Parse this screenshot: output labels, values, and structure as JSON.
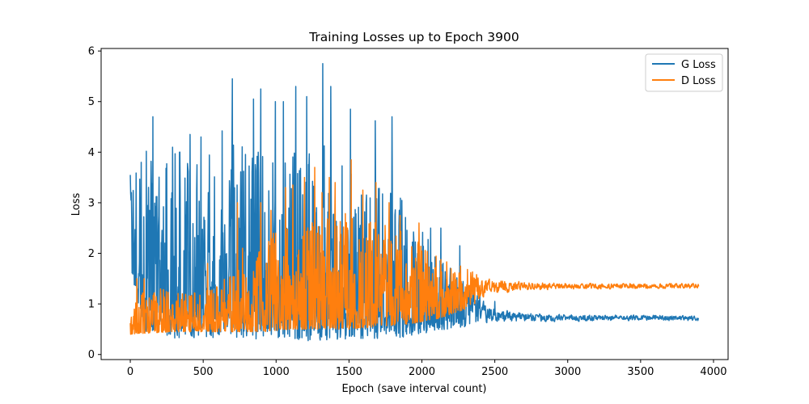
{
  "chart_data": {
    "type": "line",
    "title": "Training Losses up to Epoch 3900",
    "xlabel": "Epoch (save interval count)",
    "ylabel": "Loss",
    "xlim": [
      -200,
      4100
    ],
    "ylim": [
      -0.1,
      6.05
    ],
    "xticks": [
      0,
      500,
      1000,
      1500,
      2000,
      2500,
      3000,
      3500,
      4000
    ],
    "yticks": [
      0,
      1,
      2,
      3,
      4,
      5,
      6
    ],
    "xtick_labels": [
      "0",
      "500",
      "1000",
      "1500",
      "2000",
      "2500",
      "3000",
      "3500",
      "4000"
    ],
    "ytick_labels": [
      "0",
      "1",
      "2",
      "3",
      "4",
      "5",
      "6"
    ],
    "grid": false,
    "legend_position": "top-right",
    "series": [
      {
        "name": "G Loss",
        "color": "#1f77b4",
        "x_max": 3900,
        "profile": [
          {
            "x": 0,
            "low": 1.6,
            "high": 3.5
          },
          {
            "x": 100,
            "low": 0.4,
            "high": 3.8
          },
          {
            "x": 300,
            "low": 0.3,
            "high": 4.0
          },
          {
            "x": 500,
            "low": 0.3,
            "high": 4.2
          },
          {
            "x": 700,
            "low": 0.3,
            "high": 4.3
          },
          {
            "x": 900,
            "low": 0.3,
            "high": 4.0
          },
          {
            "x": 1100,
            "low": 0.3,
            "high": 4.0
          },
          {
            "x": 1300,
            "low": 0.25,
            "high": 4.2
          },
          {
            "x": 1500,
            "low": 0.3,
            "high": 3.8
          },
          {
            "x": 1700,
            "low": 0.3,
            "high": 3.5
          },
          {
            "x": 1900,
            "low": 0.35,
            "high": 3.0
          },
          {
            "x": 2100,
            "low": 0.45,
            "high": 2.0
          },
          {
            "x": 2300,
            "low": 0.55,
            "high": 1.4
          },
          {
            "x": 2500,
            "low": 0.6,
            "high": 0.95
          },
          {
            "x": 2700,
            "low": 0.62,
            "high": 0.85
          },
          {
            "x": 3000,
            "low": 0.65,
            "high": 0.8
          },
          {
            "x": 3900,
            "low": 0.66,
            "high": 0.78
          }
        ],
        "peaks": [
          {
            "x": 0,
            "y": 3.55
          },
          {
            "x": 75,
            "y": 3.8
          },
          {
            "x": 110,
            "y": 4.02
          },
          {
            "x": 155,
            "y": 4.7
          },
          {
            "x": 290,
            "y": 4.1
          },
          {
            "x": 410,
            "y": 4.35
          },
          {
            "x": 485,
            "y": 4.3
          },
          {
            "x": 630,
            "y": 4.42
          },
          {
            "x": 700,
            "y": 5.45
          },
          {
            "x": 845,
            "y": 5.05
          },
          {
            "x": 895,
            "y": 5.25
          },
          {
            "x": 995,
            "y": 5.0
          },
          {
            "x": 1050,
            "y": 5.0
          },
          {
            "x": 1135,
            "y": 5.3
          },
          {
            "x": 1210,
            "y": 5.1
          },
          {
            "x": 1320,
            "y": 5.75
          },
          {
            "x": 1375,
            "y": 5.3
          },
          {
            "x": 1510,
            "y": 4.85
          },
          {
            "x": 1680,
            "y": 4.62
          },
          {
            "x": 1795,
            "y": 4.7
          },
          {
            "x": 2060,
            "y": 2.5
          },
          {
            "x": 2130,
            "y": 2.5
          },
          {
            "x": 2260,
            "y": 2.15
          },
          {
            "x": 2500,
            "y": 1.05
          }
        ]
      },
      {
        "name": "D Loss",
        "color": "#ff7f0e",
        "x_max": 3900,
        "profile": [
          {
            "x": 0,
            "low": 0.4,
            "high": 0.9
          },
          {
            "x": 100,
            "low": 0.42,
            "high": 1.3
          },
          {
            "x": 300,
            "low": 0.45,
            "high": 1.3
          },
          {
            "x": 500,
            "low": 0.45,
            "high": 1.3
          },
          {
            "x": 700,
            "low": 0.45,
            "high": 1.6
          },
          {
            "x": 900,
            "low": 0.45,
            "high": 2.3
          },
          {
            "x": 1100,
            "low": 0.5,
            "high": 2.6
          },
          {
            "x": 1300,
            "low": 0.5,
            "high": 2.8
          },
          {
            "x": 1500,
            "low": 0.5,
            "high": 2.8
          },
          {
            "x": 1700,
            "low": 0.55,
            "high": 2.6
          },
          {
            "x": 1900,
            "low": 0.6,
            "high": 2.4
          },
          {
            "x": 2100,
            "low": 0.7,
            "high": 2.0
          },
          {
            "x": 2300,
            "low": 0.9,
            "high": 1.7
          },
          {
            "x": 2500,
            "low": 1.15,
            "high": 1.5
          },
          {
            "x": 2700,
            "low": 1.25,
            "high": 1.45
          },
          {
            "x": 3000,
            "low": 1.28,
            "high": 1.42
          },
          {
            "x": 3900,
            "low": 1.3,
            "high": 1.42
          }
        ],
        "peaks": [
          {
            "x": 45,
            "y": 1.5
          },
          {
            "x": 95,
            "y": 1.5
          },
          {
            "x": 530,
            "y": 1.8
          },
          {
            "x": 735,
            "y": 3.0
          },
          {
            "x": 770,
            "y": 2.1
          },
          {
            "x": 895,
            "y": 3.0
          },
          {
            "x": 965,
            "y": 2.85
          },
          {
            "x": 1065,
            "y": 3.3
          },
          {
            "x": 1115,
            "y": 3.35
          },
          {
            "x": 1195,
            "y": 3.5
          },
          {
            "x": 1265,
            "y": 3.7
          },
          {
            "x": 1315,
            "y": 3.2
          },
          {
            "x": 1365,
            "y": 3.5
          },
          {
            "x": 1405,
            "y": 3.4
          },
          {
            "x": 1515,
            "y": 3.85
          },
          {
            "x": 1595,
            "y": 3.25
          },
          {
            "x": 1685,
            "y": 3.4
          },
          {
            "x": 1775,
            "y": 3.0
          },
          {
            "x": 1850,
            "y": 2.75
          },
          {
            "x": 1980,
            "y": 2.6
          },
          {
            "x": 2200,
            "y": 1.7
          },
          {
            "x": 2265,
            "y": 1.75
          }
        ]
      }
    ]
  }
}
